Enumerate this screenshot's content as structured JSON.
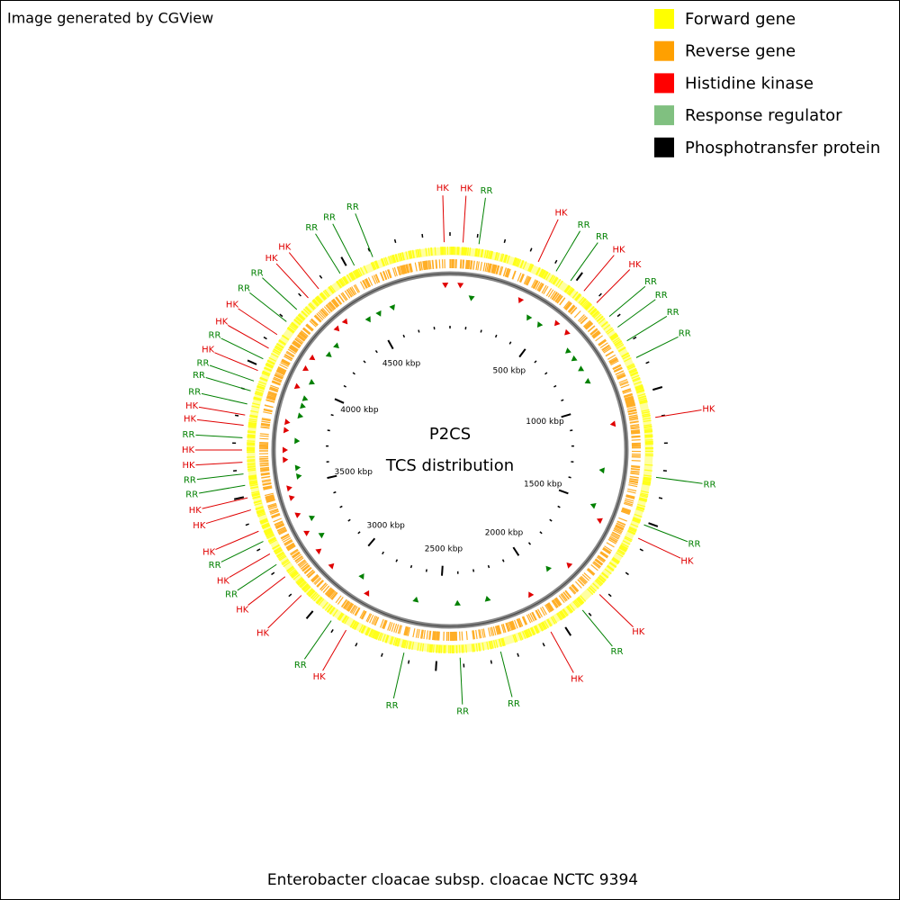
{
  "header": {
    "credit": "Image generated by CGView"
  },
  "legend": [
    {
      "label": "Forward gene",
      "color": "#ffff00"
    },
    {
      "label": "Reverse gene",
      "color": "#ffa000"
    },
    {
      "label": "Histidine kinase",
      "color": "#ff0000"
    },
    {
      "label": "Response regulator",
      "color": "#80c080"
    },
    {
      "label": "Phosphotransfer protein",
      "color": "#000000"
    }
  ],
  "map": {
    "title": "P2CS",
    "subtitle": "TCS distribution",
    "footer": "Enterobacter cloacae subsp. cloacae NCTC 9394",
    "range": [
      0,
      4900
    ],
    "ticks": [
      {
        "value": 500,
        "label": "500 kbp"
      },
      {
        "value": 1000,
        "label": "1000 kbp"
      },
      {
        "value": 1500,
        "label": "1500 kbp"
      },
      {
        "value": 2000,
        "label": "2000 kbp"
      },
      {
        "value": 2500,
        "label": "2500 kbp"
      },
      {
        "value": 3000,
        "label": "3000 kbp"
      },
      {
        "value": 3500,
        "label": "3500 kbp"
      },
      {
        "value": 4000,
        "label": "4000 kbp"
      },
      {
        "value": 4500,
        "label": "4500 kbp"
      }
    ],
    "features": [
      {
        "label": "HK",
        "pos": 4878,
        "color": "#e00000"
      },
      {
        "label": "HK",
        "pos": 49,
        "color": "#e00000"
      },
      {
        "label": "RR",
        "pos": 109,
        "color": "#008000"
      },
      {
        "label": "HK",
        "pos": 342,
        "color": "#e00000"
      },
      {
        "label": "RR",
        "pos": 418,
        "color": "#008000"
      },
      {
        "label": "RR",
        "pos": 483,
        "color": "#008000"
      },
      {
        "label": "HK",
        "pos": 546,
        "color": "#e00000"
      },
      {
        "label": "HK",
        "pos": 611,
        "color": "#e00000"
      },
      {
        "label": "RR",
        "pos": 681,
        "color": "#008000"
      },
      {
        "label": "RR",
        "pos": 732,
        "color": "#008000"
      },
      {
        "label": "RR",
        "pos": 794,
        "color": "#008000"
      },
      {
        "label": "RR",
        "pos": 866,
        "color": "#008000"
      },
      {
        "label": "HK",
        "pos": 1102,
        "color": "#e00000"
      },
      {
        "label": "RR",
        "pos": 1328,
        "color": "#008000"
      },
      {
        "label": "RR",
        "pos": 1512,
        "color": "#008000"
      },
      {
        "label": "HK",
        "pos": 1567,
        "color": "#e00000"
      },
      {
        "label": "HK",
        "pos": 1824,
        "color": "#e00000"
      },
      {
        "label": "RR",
        "pos": 1911,
        "color": "#008000"
      },
      {
        "label": "HK",
        "pos": 2055,
        "color": "#e00000"
      },
      {
        "label": "RR",
        "pos": 2258,
        "color": "#008000"
      },
      {
        "label": "RR",
        "pos": 2412,
        "color": "#008000"
      },
      {
        "label": "RR",
        "pos": 2624,
        "color": "#008000"
      },
      {
        "label": "HK",
        "pos": 2858,
        "color": "#e00000"
      },
      {
        "label": "RR",
        "pos": 2924,
        "color": "#008000"
      },
      {
        "label": "HK",
        "pos": 3071,
        "color": "#e00000"
      },
      {
        "label": "HK",
        "pos": 3164,
        "color": "#e00000"
      },
      {
        "label": "RR",
        "pos": 3220,
        "color": "#008000"
      },
      {
        "label": "HK",
        "pos": 3267,
        "color": "#e00000"
      },
      {
        "label": "RR",
        "pos": 3320,
        "color": "#008000"
      },
      {
        "label": "HK",
        "pos": 3362,
        "color": "#e00000"
      },
      {
        "label": "HK",
        "pos": 3447,
        "color": "#e00000"
      },
      {
        "label": "HK",
        "pos": 3494,
        "color": "#e00000"
      },
      {
        "label": "RR",
        "pos": 3542,
        "color": "#008000"
      },
      {
        "label": "RR",
        "pos": 3585,
        "color": "#008000"
      },
      {
        "label": "HK",
        "pos": 3629,
        "color": "#e00000"
      },
      {
        "label": "HK",
        "pos": 3675,
        "color": "#e00000"
      },
      {
        "label": "RR",
        "pos": 3721,
        "color": "#008000"
      },
      {
        "label": "HK",
        "pos": 3768,
        "color": "#e00000"
      },
      {
        "label": "HK",
        "pos": 3807,
        "color": "#e00000"
      },
      {
        "label": "RR",
        "pos": 3849,
        "color": "#008000"
      },
      {
        "label": "RR",
        "pos": 3900,
        "color": "#008000"
      },
      {
        "label": "RR",
        "pos": 3939,
        "color": "#008000"
      },
      {
        "label": "HK",
        "pos": 3981,
        "color": "#e00000"
      },
      {
        "label": "RR",
        "pos": 4029,
        "color": "#008000"
      },
      {
        "label": "HK",
        "pos": 4074,
        "color": "#e00000"
      },
      {
        "label": "HK",
        "pos": 4134,
        "color": "#e00000"
      },
      {
        "label": "RR",
        "pos": 4194,
        "color": "#008000"
      },
      {
        "label": "RR",
        "pos": 4254,
        "color": "#008000"
      },
      {
        "label": "HK",
        "pos": 4315,
        "color": "#e00000"
      },
      {
        "label": "HK",
        "pos": 4367,
        "color": "#e00000"
      },
      {
        "label": "RR",
        "pos": 4466,
        "color": "#008000"
      },
      {
        "label": "RR",
        "pos": 4527,
        "color": "#008000"
      },
      {
        "label": "RR",
        "pos": 4603,
        "color": "#008000"
      }
    ]
  }
}
